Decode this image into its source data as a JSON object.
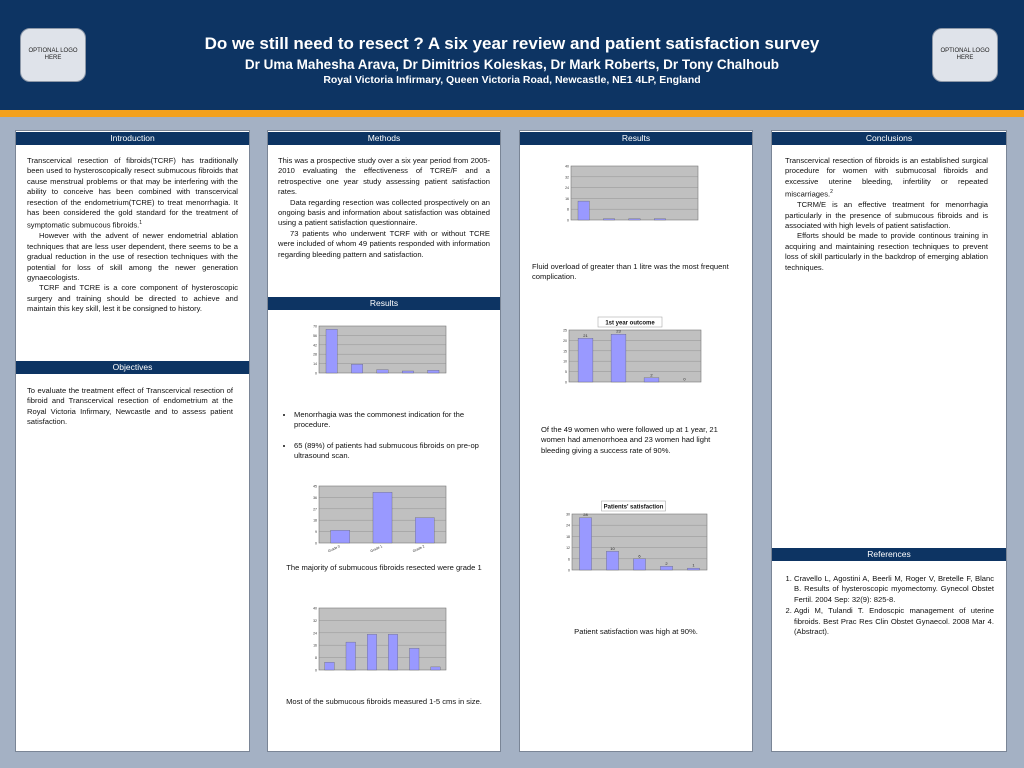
{
  "header": {
    "title": "Do we still need to resect ? A six year review and patient satisfaction survey",
    "authors": "Dr  Uma Mahesha Arava, Dr Dimitrios Koleskas, Dr Mark Roberts, Dr Tony Chalhoub",
    "affiliation": "Royal Victoria Infirmary, Queen Victoria Road, Newcastle, NE1 4LP, England",
    "logo_left": "OPTIONAL LOGO HERE",
    "logo_right": "OPTIONAL LOGO HERE"
  },
  "colors": {
    "header": "#0d3463",
    "accent": "#f3a11e",
    "background": "#a4b1c4",
    "bar_fill": "#9999ff"
  },
  "sections": {
    "introduction": {
      "heading": "Introduction",
      "p1": "Transcervical resection of fibroids(TCRF) has  traditionally been used to hysteroscopically resect submucous fibroids  that cause menstrual problems or that may be interfering with the ability to conceive has  been combined with transcervical resection of the endometrium(TCRE) to treat menorrhagia. It has been considered the gold standard for the treatment of symptomatic submucous fibroids.",
      "p1_sup": "1",
      "p2": "However with the advent of newer endometrial ablation techniques that are less user dependent, there seems to be a gradual reduction in the use of resection techniques with the potential for loss of skill  among the newer generation gynaecologists.",
      "p3": "TCRF and TCRE is a core component of hysteroscopic surgery and training should be directed to achieve and maintain this key skill, lest it be consigned to history."
    },
    "objectives": {
      "heading": "Objectives",
      "text": "To evaluate the treatment effect of Transcervical resection of fibroid and Transcervical resection of endometrium at the Royal Victoria Infirmary, Newcastle and to assess patient satisfaction."
    },
    "methods": {
      "heading": "Methods",
      "p1": "This was a prospective study over a six year period from 2005-2010  evaluating the effectiveness of TCRE/F and a retrospective one year study assessing patient satisfaction rates.",
      "p2": "Data regarding resection was collected prospectively on an ongoing basis and information about satisfaction was obtained using a patient satisfaction questionnaire.",
      "p3": "73 patients who underwent TCRF with or without TCRE were included of whom 49 patients responded with information regarding bleeding pattern and satisfaction."
    },
    "results_mid": {
      "heading": "Results",
      "bullet1": "Menorrhagia was the commonest indication for the procedure.",
      "bullet2": "65 (89%) of patients had submucous fibroids on pre-op ultrasound scan.",
      "caption_grade": "The majority of submucous fibroids resected were grade 1",
      "caption_size": "Most of the submucous fibroids measured 1-5 cms in size."
    },
    "results_right": {
      "heading": "Results",
      "caption_comp": "Fluid overload of greater than 1 litre was the most frequent complication.",
      "caption_outcome": "Of the 49 women who were  followed up at 1 year, 21 women had amenorrhoea and 23 women had light bleeding giving a success rate of 90%.",
      "caption_satisfaction": "Patient satisfaction was high at 90%."
    },
    "conclusions": {
      "heading": "Conclusions",
      "p1": "Transcervical resection of fibroids is an established surgical procedure for women with submucosal fibroids and excessive uterine bleeding, infertility or repeated miscarriages.",
      "p1_sup": "2",
      "p2": "TCRM/E is  an effective treatment for menorrhagia particularly in the presence of  submucous fibroids and is associated with high levels of patient satisfaction.",
      "p3": "Efforts should be made to provide continous training in acquiring and maintaining resection techniques to prevent loss of skill particularly in the backdrop of emerging ablation techniques."
    },
    "references": {
      "heading": "References",
      "items": [
        "Cravello L, Agostini A, Beerli M, Roger V, Bretelle F, Blanc      B. Results of hysteroscopic myomectomy. Gynecol Obstet Fertil. 2004 Sep: 32(9): 825-8.",
        "Agdi M, Tulandi T. Endoscpic management of uterine fibroids. Best Prac Res Clin Obstet Gynaecol. 2008 Mar 4. (Abstract)."
      ]
    }
  },
  "chart_data": [
    {
      "id": "indication",
      "type": "bar",
      "title": "",
      "ylabel": "",
      "ylim": [
        0,
        70
      ],
      "categories": [
        "",
        "",
        "",
        "",
        ""
      ],
      "values": [
        65,
        13,
        5,
        3,
        4
      ]
    },
    {
      "id": "grade",
      "type": "bar",
      "title": "",
      "ylabel": "",
      "ylim": [
        0,
        45
      ],
      "categories": [
        "Grade 0",
        "Grade 1",
        "Grade 2"
      ],
      "values": [
        10,
        40,
        20
      ]
    },
    {
      "id": "size",
      "type": "bar",
      "title": "",
      "ylabel": "",
      "ylim": [
        0,
        40
      ],
      "categories": [
        "",
        "",
        "",
        "",
        "",
        ""
      ],
      "values": [
        5,
        18,
        23,
        23,
        14,
        2
      ]
    },
    {
      "id": "complications",
      "type": "bar",
      "title": "",
      "ylabel": "",
      "ylim": [
        0,
        40
      ],
      "categories": [
        "",
        "",
        "",
        "",
        ""
      ],
      "values": [
        14,
        1,
        1,
        1,
        0
      ]
    },
    {
      "id": "outcome",
      "type": "bar",
      "title": "1st year outcome",
      "ylabel": "",
      "ylim": [
        0,
        25
      ],
      "categories": [
        "",
        "",
        "",
        ""
      ],
      "values": [
        21,
        23,
        2,
        0
      ],
      "data_labels": [
        "21",
        "23",
        "2",
        "0"
      ]
    },
    {
      "id": "satisfaction",
      "type": "bar",
      "title": "Patients' satisfaction",
      "ylabel": "",
      "ylim": [
        0,
        30
      ],
      "categories": [
        "",
        "",
        "",
        "",
        ""
      ],
      "values": [
        28,
        10,
        6,
        2,
        1
      ],
      "data_labels": [
        "28",
        "10",
        "6",
        "2",
        "1"
      ]
    }
  ]
}
